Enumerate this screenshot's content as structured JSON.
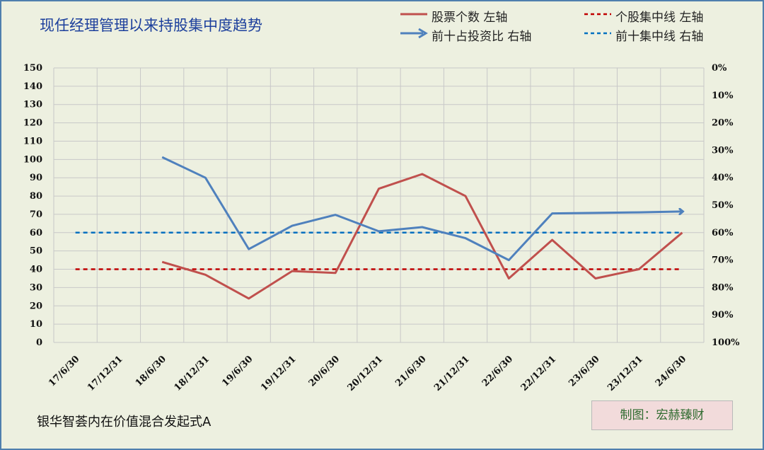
{
  "title": "现任经理管理以来持股集中度趋势",
  "fund_name": "银华智荟内在价值混合发起式A",
  "credit": "制图：宏赫臻财",
  "legend": [
    {
      "label": "股票个数 左轴",
      "style": "solid-line",
      "color": "#c0504d"
    },
    {
      "label": "个股集中线 左轴",
      "style": "dashed-line",
      "color": "#c00000"
    },
    {
      "label": "前十占投资比 右轴",
      "style": "arrow-line",
      "color": "#4f81bd"
    },
    {
      "label": "前十集中线 右轴",
      "style": "dashed-line",
      "color": "#0070c0"
    }
  ],
  "chart_data": {
    "type": "line",
    "categories": [
      "17/6/30",
      "17/12/31",
      "18/6/30",
      "18/12/31",
      "19/6/30",
      "19/12/31",
      "20/6/30",
      "20/12/31",
      "21/6/30",
      "21/12/31",
      "22/6/30",
      "22/12/31",
      "23/6/30",
      "23/12/31",
      "24/6/30"
    ],
    "y_left": {
      "min": 0,
      "max": 150,
      "step": 10,
      "ticks": [
        "0",
        "10",
        "20",
        "30",
        "40",
        "50",
        "60",
        "70",
        "80",
        "90",
        "100",
        "110",
        "120",
        "130",
        "140",
        "150"
      ]
    },
    "y_right": {
      "min": 0,
      "max": 100,
      "inverted": true,
      "ticks": [
        "0%",
        "10%",
        "20%",
        "30%",
        "40%",
        "50%",
        "60%",
        "70%",
        "80%",
        "90%",
        "100%"
      ]
    },
    "series": [
      {
        "name": "股票个数 左轴",
        "axis": "left",
        "color": "#c0504d",
        "values": [
          null,
          null,
          44,
          37,
          24,
          39,
          38,
          84,
          92,
          80,
          35,
          56,
          35,
          40,
          60
        ]
      },
      {
        "name": "前十占投资比 右轴",
        "axis": "right",
        "color": "#4f81bd",
        "arrow_end": true,
        "values": [
          null,
          null,
          32.5,
          40,
          66,
          57.5,
          53.5,
          59.5,
          58,
          62,
          70,
          53,
          52.8,
          52.6,
          52.3
        ]
      }
    ],
    "reference_lines": [
      {
        "name": "个股集中线 左轴",
        "axis": "left",
        "value": 40,
        "color": "#c00000"
      },
      {
        "name": "前十集中线 右轴",
        "axis": "right",
        "value": 60,
        "color": "#0070c0"
      }
    ],
    "grid": "vertical-and-horizontal"
  }
}
